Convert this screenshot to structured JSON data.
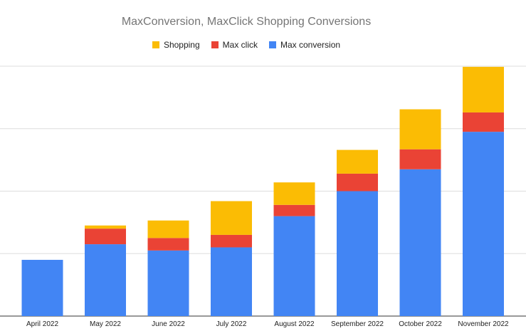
{
  "chart_data": {
    "type": "bar",
    "stacked": true,
    "title": "MaxConversion, MaxClick Shopping Conversions",
    "xlabel": "",
    "ylabel": "",
    "categories": [
      "April 2022",
      "May 2022",
      "June 2022",
      "July 2022",
      "August 2022",
      "September 2022",
      "October 2022",
      "November 2022"
    ],
    "series": [
      {
        "name": "Max conversion",
        "color": "#4285F4",
        "values": [
          9.0,
          11.5,
          10.5,
          11.0,
          16.0,
          20.0,
          23.5,
          29.5
        ]
      },
      {
        "name": "Max click",
        "color": "#EA4335",
        "values": [
          0,
          2.5,
          2.0,
          2.0,
          1.8,
          2.8,
          3.2,
          3.1
        ]
      },
      {
        "name": "Shopping",
        "color": "#FBBC04",
        "values": [
          0,
          0.5,
          2.8,
          5.4,
          3.6,
          3.8,
          6.4,
          7.3
        ]
      }
    ],
    "legend_order": [
      "Shopping",
      "Max click",
      "Max conversion"
    ],
    "legend_position": "top",
    "ylim": [
      0,
      40
    ],
    "y_gridlines": [
      0,
      10,
      20,
      30,
      40
    ],
    "y_tick_labels_visible": false,
    "grid": true
  }
}
